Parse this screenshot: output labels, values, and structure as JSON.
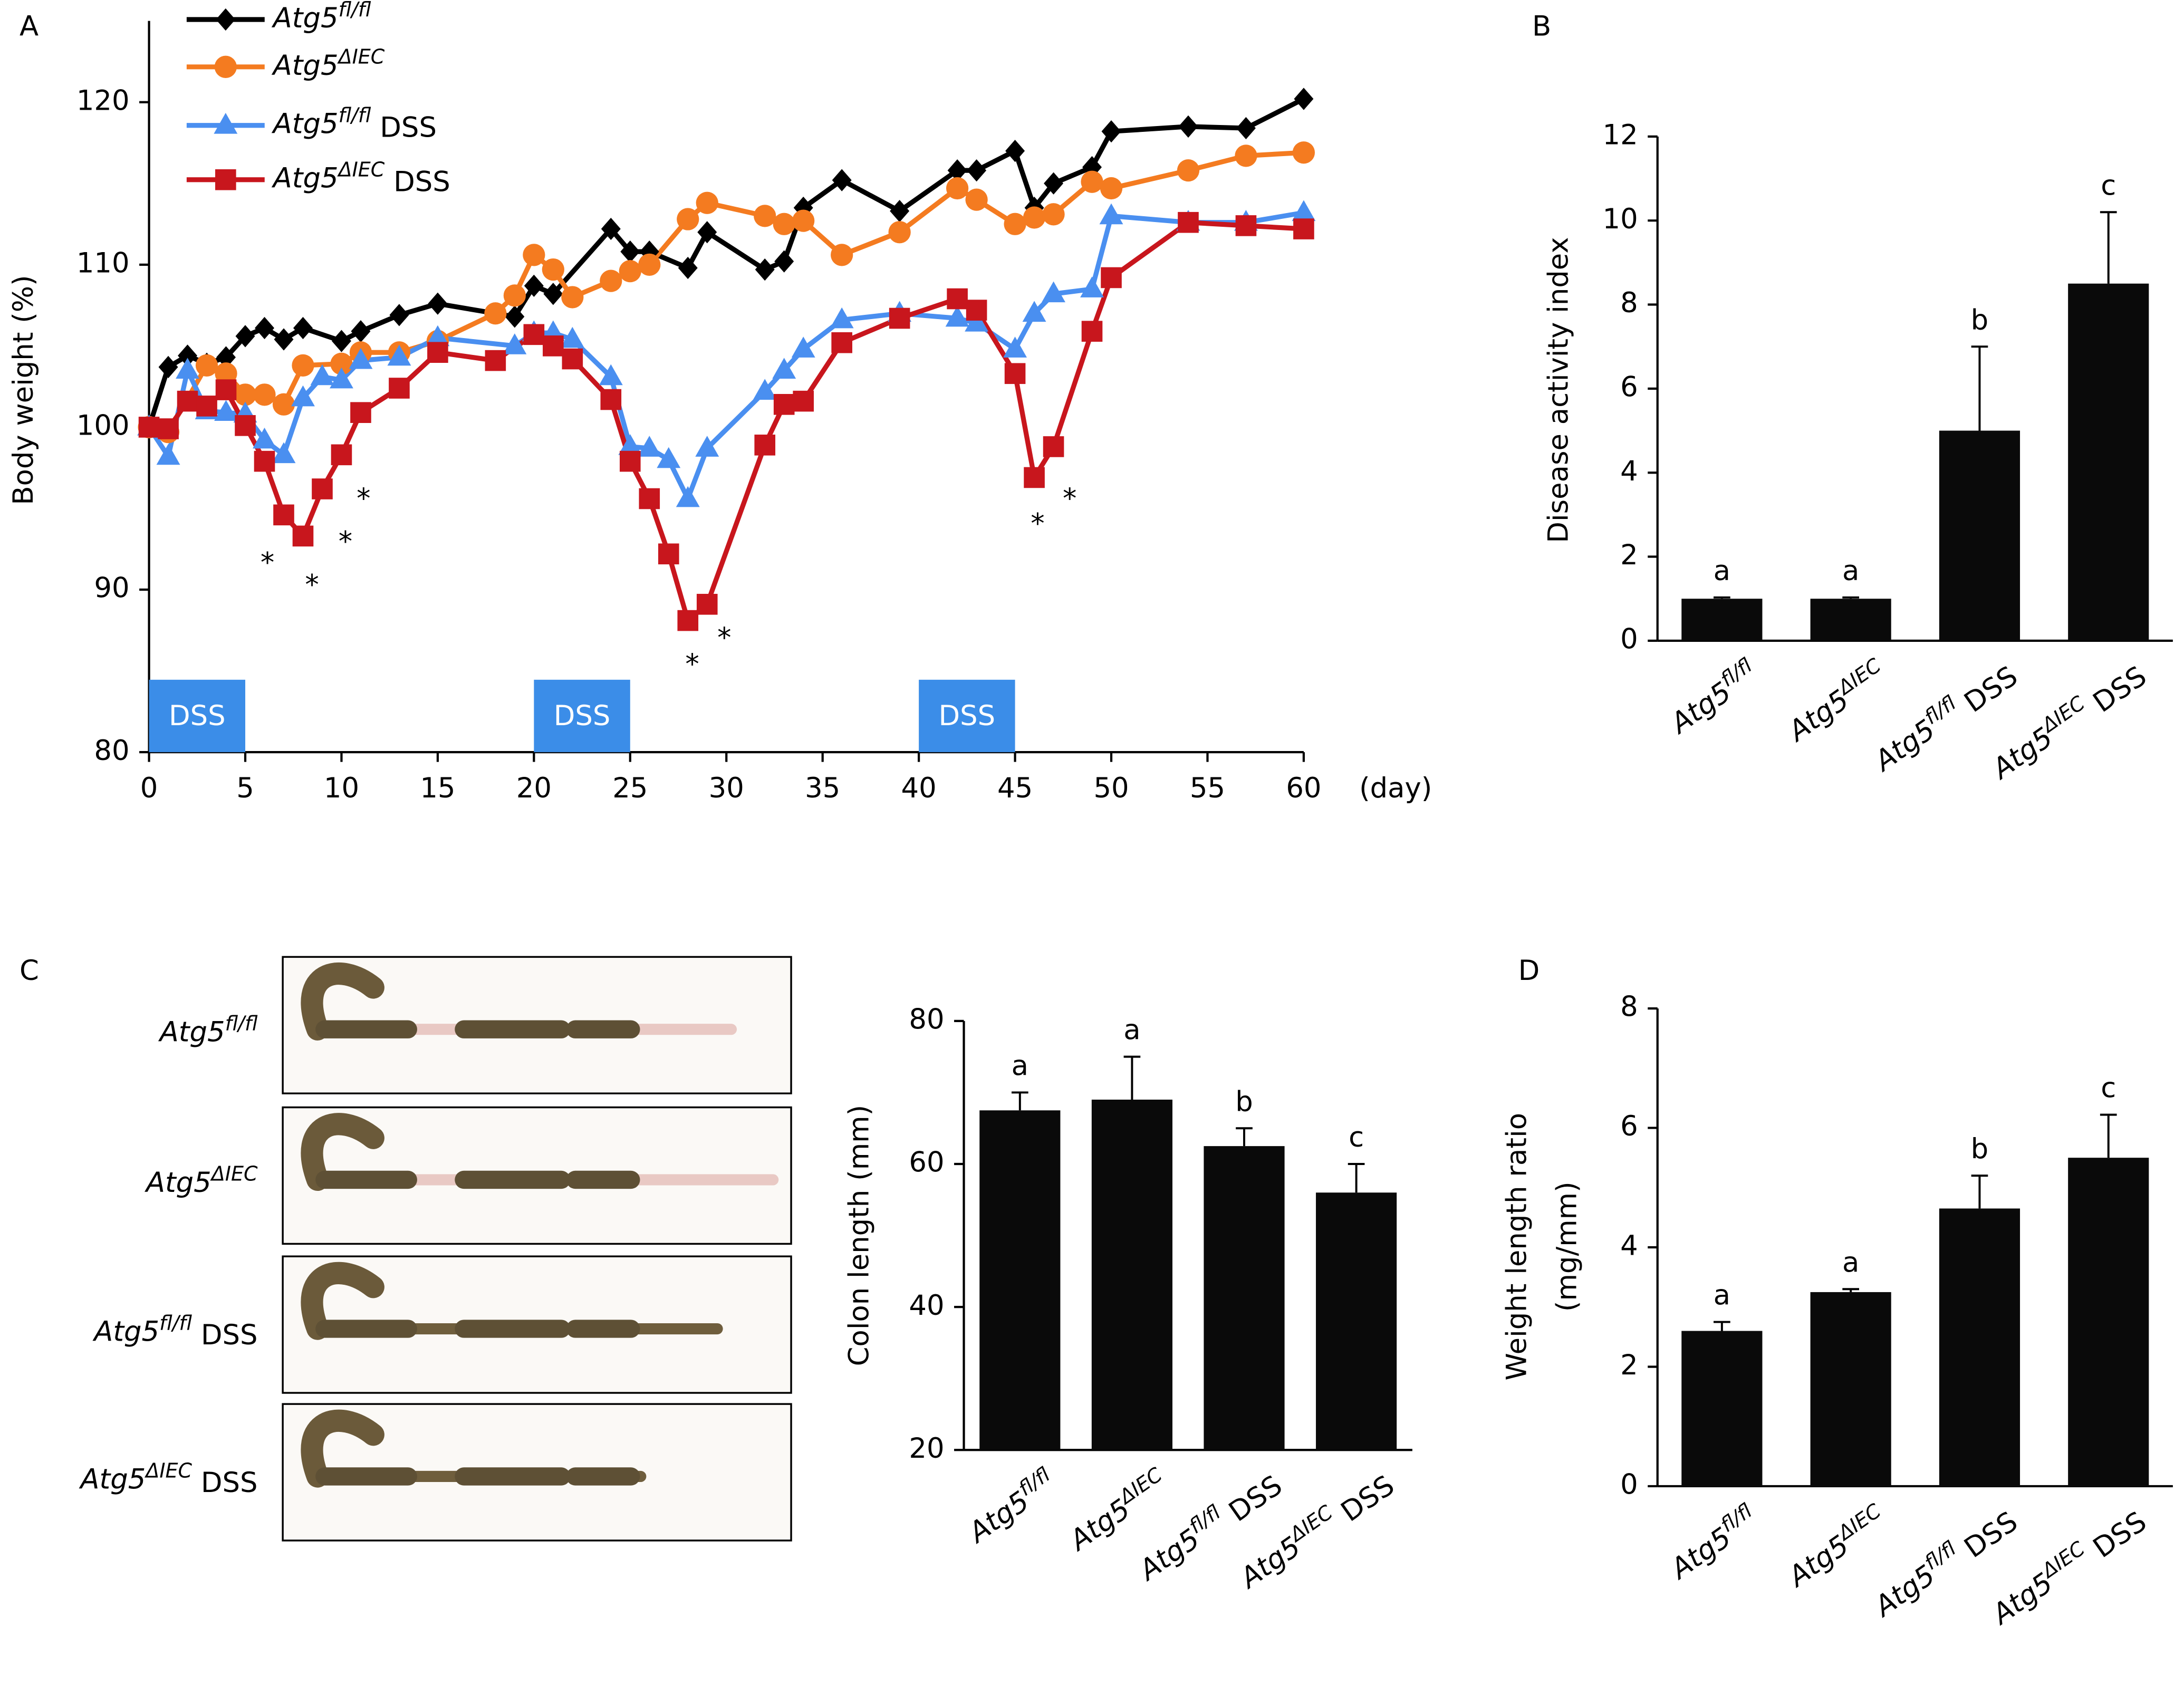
{
  "chart_data": [
    {
      "type": "line",
      "panel_label": "A",
      "ylabel": "Body weight (%)",
      "xlabel": "(day)",
      "xlim": [
        0,
        60
      ],
      "ylim": [
        80,
        125
      ],
      "xticks": [
        0,
        5,
        10,
        15,
        20,
        25,
        30,
        35,
        40,
        45,
        50,
        55,
        60
      ],
      "yticks": [
        80,
        90,
        100,
        110,
        120
      ],
      "series": [
        {
          "name": "Atg5fl/fl",
          "color": "#000000",
          "marker": "diamond",
          "x": [
            0,
            1,
            2,
            3,
            4,
            5,
            6,
            7,
            8,
            10,
            11,
            13,
            15,
            19,
            20,
            21,
            24,
            25,
            26,
            28,
            29,
            32,
            33,
            34,
            36,
            39,
            42,
            43,
            45,
            46,
            47,
            49,
            50,
            54,
            57,
            60
          ],
          "values": [
            100,
            103.7,
            104.4,
            103.9,
            104.3,
            105.6,
            106.1,
            105.4,
            106.1,
            105.3,
            105.9,
            106.9,
            107.6,
            106.8,
            108.7,
            108.2,
            112.2,
            110.8,
            110.8,
            109.8,
            112.0,
            109.7,
            110.2,
            113.5,
            115.2,
            113.3,
            115.8,
            115.8,
            117.0,
            113.5,
            115.0,
            116.0,
            118.2,
            118.5,
            118.4,
            120.2
          ]
        },
        {
          "name": "Atg5ΔIEC",
          "color": "#f47b20",
          "marker": "circle",
          "x": [
            0,
            1,
            3,
            4,
            5,
            6,
            7,
            8,
            10,
            11,
            13,
            15,
            18,
            19,
            20,
            21,
            22,
            24,
            25,
            26,
            28,
            29,
            32,
            33,
            34,
            36,
            39,
            42,
            43,
            45,
            46,
            47,
            49,
            50,
            54,
            57,
            60
          ],
          "values": [
            100,
            99.7,
            103.8,
            103.3,
            102.0,
            102.0,
            101.4,
            103.8,
            103.9,
            104.6,
            104.6,
            105.3,
            107.0,
            108.1,
            110.6,
            109.7,
            108.0,
            109.0,
            109.6,
            110.0,
            112.8,
            113.8,
            113.0,
            112.5,
            112.7,
            110.6,
            112.0,
            114.7,
            114.0,
            112.5,
            112.9,
            113.1,
            115.1,
            114.7,
            115.8,
            116.7,
            116.9
          ]
        },
        {
          "name": "Atg5fl/fl DSS",
          "color": "#4a8ff0",
          "marker": "triangle",
          "x": [
            0,
            1,
            2,
            3,
            4,
            5,
            6,
            7,
            8,
            9,
            10,
            11,
            13,
            15,
            19,
            20,
            21,
            22,
            24,
            25,
            26,
            27,
            28,
            29,
            32,
            33,
            34,
            36,
            39,
            42,
            43,
            45,
            46,
            47,
            49,
            50,
            54,
            57,
            60
          ],
          "values": [
            100,
            98.2,
            103.5,
            101.0,
            100.9,
            100.8,
            99.2,
            98.3,
            101.8,
            103.1,
            102.9,
            104.1,
            104.3,
            105.5,
            105.0,
            105.8,
            105.8,
            105.4,
            103.1,
            98.8,
            98.7,
            98.0,
            95.6,
            98.7,
            102.2,
            103.5,
            104.8,
            106.6,
            107.0,
            106.7,
            106.4,
            104.8,
            107.0,
            108.2,
            108.5,
            113.0,
            112.6,
            112.6,
            113.2
          ]
        },
        {
          "name": "Atg5ΔIEC DSS",
          "color": "#c8161d",
          "marker": "square",
          "x": [
            0,
            1,
            2,
            3,
            4,
            5,
            6,
            7,
            8,
            9,
            10,
            11,
            13,
            15,
            18,
            20,
            21,
            22,
            24,
            25,
            26,
            27,
            28,
            29,
            32,
            33,
            34,
            36,
            39,
            42,
            43,
            45,
            46,
            47,
            49,
            50,
            54,
            57,
            60
          ],
          "values": [
            100,
            99.9,
            101.6,
            101.3,
            102.3,
            100.1,
            97.9,
            94.6,
            93.3,
            96.2,
            98.3,
            100.9,
            102.4,
            104.6,
            104.1,
            105.7,
            105.0,
            104.2,
            101.7,
            97.9,
            95.6,
            92.2,
            88.1,
            89.1,
            98.9,
            101.4,
            101.6,
            105.2,
            106.7,
            107.9,
            107.2,
            103.3,
            96.9,
            98.8,
            105.9,
            109.2,
            112.6,
            112.4,
            112.2
          ]
        }
      ],
      "shaded_periods": [
        {
          "label": "DSS",
          "start": 0,
          "end": 5
        },
        {
          "label": "DSS",
          "start": 20,
          "end": 25
        },
        {
          "label": "DSS",
          "start": 40,
          "end": 45
        }
      ],
      "shade_color": "#3b8de8",
      "annotations": [
        "*",
        "*",
        "*",
        "*",
        "*",
        "*",
        "*",
        "*"
      ]
    },
    {
      "type": "bar",
      "panel_label": "B",
      "ylabel": "Disease activity index",
      "categories": [
        "Atg5fl/fl",
        "Atg5ΔIEC",
        "Atg5fl/fl DSS",
        "Atg5ΔIEC DSS"
      ],
      "values": [
        1,
        1,
        5,
        8.5
      ],
      "errors": [
        0.03,
        0.03,
        2,
        1.7
      ],
      "annotations": [
        "a",
        "a",
        "b",
        "c"
      ],
      "color": "#0a0a0a",
      "ylim": [
        0,
        12
      ],
      "yticks": [
        0,
        2,
        4,
        6,
        8,
        10,
        12
      ]
    },
    {
      "type": "bar",
      "panel_label": "C",
      "ylabel": "Colon length (mm)",
      "image_labels": [
        "Atg5fl/fl",
        "Atg5ΔIEC",
        "Atg5fl/fl DSS",
        "Atg5ΔIEC DSS"
      ],
      "categories": [
        "Atg5fl/fl",
        "Atg5ΔIEC",
        "Atg5fl/fl DSS",
        "Atg5ΔIEC DSS"
      ],
      "values": [
        67.5,
        69,
        62.5,
        56
      ],
      "errors": [
        2.5,
        6,
        2.5,
        4
      ],
      "annotations": [
        "a",
        "a",
        "b",
        "c"
      ],
      "color": "#0a0a0a",
      "ylim": [
        20,
        80
      ],
      "yticks": [
        20,
        40,
        60,
        80
      ]
    },
    {
      "type": "bar",
      "panel_label": "D",
      "ylabel": [
        "Weight length ratio",
        "(mg/mm)"
      ],
      "categories": [
        "Atg5fl/fl",
        "Atg5ΔIEC",
        "Atg5fl/fl DSS",
        "Atg5ΔIEC DSS"
      ],
      "values": [
        2.6,
        3.25,
        4.65,
        5.5
      ],
      "errors": [
        0.15,
        0.05,
        0.55,
        0.72
      ],
      "annotations": [
        "a",
        "a",
        "b",
        "c"
      ],
      "color": "#0a0a0a",
      "ylim": [
        0,
        8
      ],
      "yticks": [
        0,
        2,
        4,
        6,
        8
      ]
    }
  ]
}
